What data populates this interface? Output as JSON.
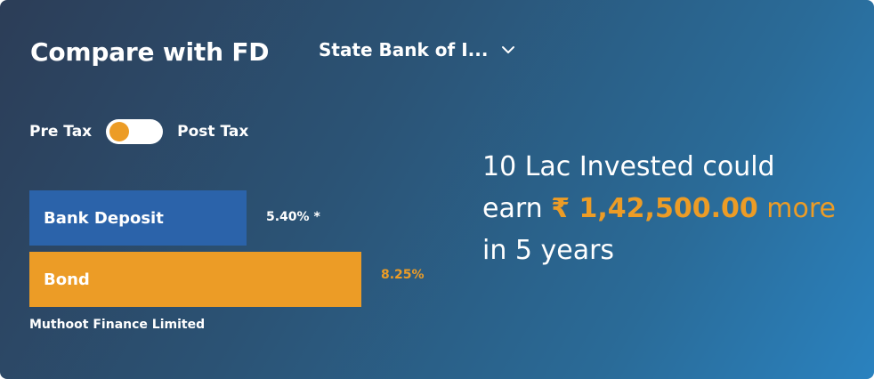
{
  "header": {
    "title": "Compare with FD",
    "bank_selector": {
      "selected": "State Bank of I...",
      "icon": "chevron-down-icon"
    }
  },
  "tax_toggle": {
    "left_label": "Pre Tax",
    "right_label": "Post Tax",
    "state": "Pre Tax"
  },
  "comparison": {
    "bars": [
      {
        "label": "Bank Deposit",
        "value_label": "5.40% *",
        "value": 5.4
      },
      {
        "label": "Bond",
        "value_label": "8.25%",
        "value": 8.25
      }
    ],
    "issuer": "Muthoot Finance Limited"
  },
  "summary": {
    "line1": "10 Lac Invested could",
    "earn_prefix": "earn",
    "amount": "₹ 1,42,500.00",
    "more": "more",
    "line3": "in 5 years"
  },
  "colors": {
    "accent_orange": "#ec9c26",
    "deposit_blue": "#2b63aa",
    "gradient_start": "#2c3d57",
    "gradient_end": "#2a82bf"
  }
}
